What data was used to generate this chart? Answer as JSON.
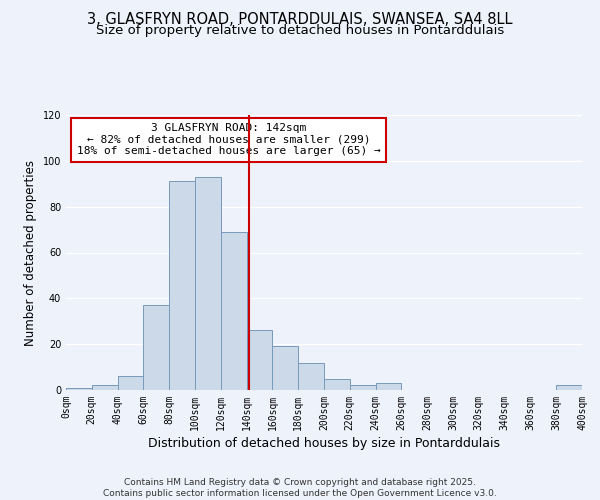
{
  "title": "3, GLASFRYN ROAD, PONTARDDULAIS, SWANSEA, SA4 8LL",
  "subtitle": "Size of property relative to detached houses in Pontarddulais",
  "xlabel": "Distribution of detached houses by size in Pontarddulais",
  "ylabel": "Number of detached properties",
  "bin_edges": [
    0,
    20,
    40,
    60,
    80,
    100,
    120,
    140,
    160,
    180,
    200,
    220,
    240,
    260,
    280,
    300,
    320,
    340,
    360,
    380,
    400
  ],
  "bar_heights": [
    1,
    2,
    6,
    37,
    91,
    93,
    69,
    26,
    19,
    12,
    5,
    2,
    3,
    0,
    0,
    0,
    0,
    0,
    0,
    2
  ],
  "bar_color": "#ccd9e8",
  "bar_edgecolor": "#7799bb",
  "vline_x": 142,
  "vline_color": "#cc0000",
  "annotation_title": "3 GLASFRYN ROAD: 142sqm",
  "annotation_line1": "← 82% of detached houses are smaller (299)",
  "annotation_line2": "18% of semi-detached houses are larger (65) →",
  "annotation_box_edgecolor": "#cc0000",
  "annotation_box_facecolor": "#ffffff",
  "ylim": [
    0,
    120
  ],
  "yticks": [
    0,
    20,
    40,
    60,
    80,
    100,
    120
  ],
  "xlim": [
    0,
    400
  ],
  "background_color": "#eef2fb",
  "footer_line1": "Contains HM Land Registry data © Crown copyright and database right 2025.",
  "footer_line2": "Contains public sector information licensed under the Open Government Licence v3.0.",
  "title_fontsize": 10.5,
  "subtitle_fontsize": 9.5,
  "xlabel_fontsize": 9,
  "ylabel_fontsize": 8.5,
  "tick_fontsize": 7,
  "annotation_fontsize": 8,
  "footer_fontsize": 6.5
}
